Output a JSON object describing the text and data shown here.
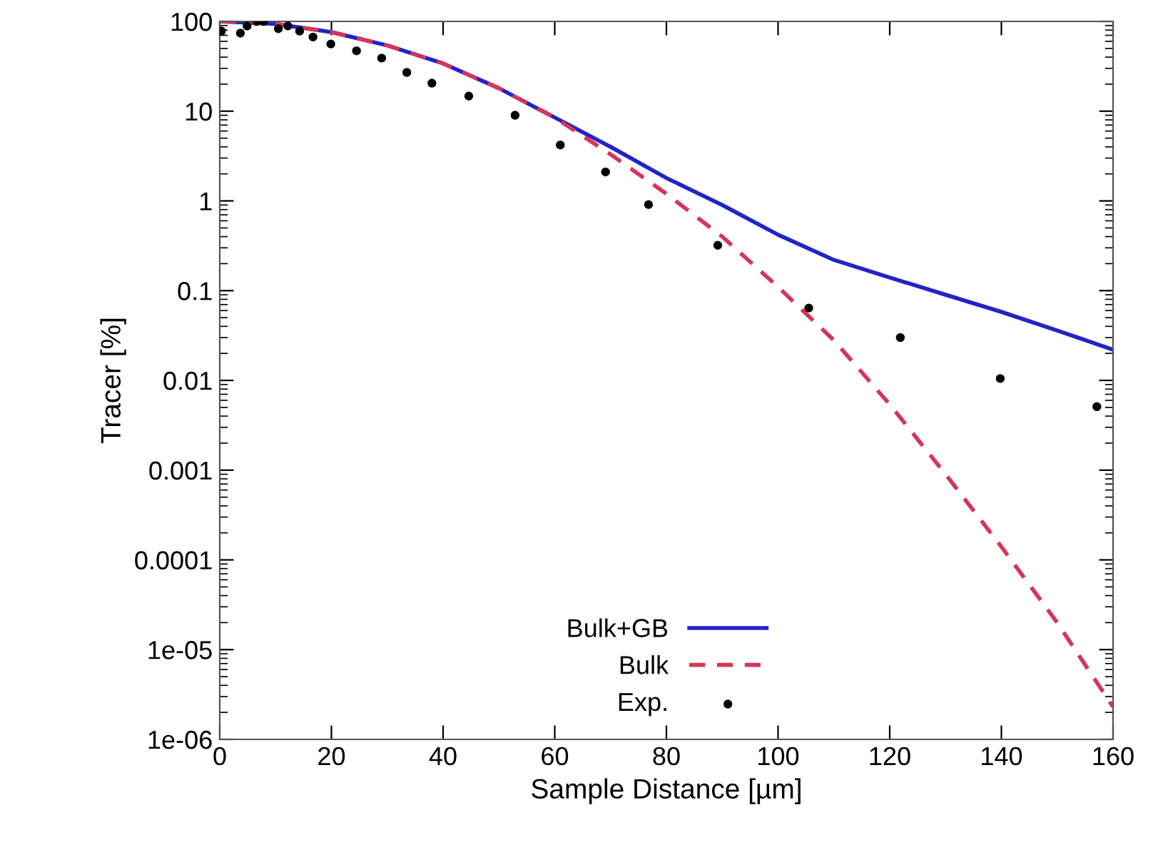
{
  "chart_data": {
    "type": "line",
    "xlabel": "Sample Distance [µm]",
    "ylabel": "Tracer [%]",
    "log": "y",
    "xlim": [
      0,
      160
    ],
    "xticks": [
      0,
      20,
      40,
      60,
      80,
      100,
      120,
      140,
      160
    ],
    "ylim": [
      1e-06,
      100
    ],
    "yticks": [
      {
        "value": 1e-06,
        "label": "1e-06"
      },
      {
        "value": 1e-05,
        "label": "1e-05"
      },
      0.0001,
      0.001,
      0.01,
      0.1,
      1,
      10,
      100
    ],
    "grid": false,
    "legend": "bottom",
    "series": [
      {
        "name": "Bulk+GB",
        "color": "#2323c8",
        "line_style": "solid",
        "marker": "none",
        "x": [
          0,
          10,
          20,
          30,
          40,
          50,
          60,
          70,
          80,
          90,
          100,
          110,
          120,
          130,
          140,
          150,
          160
        ],
        "values": [
          100,
          94,
          76,
          54,
          34,
          18,
          8.5,
          4.0,
          1.8,
          0.9,
          0.42,
          0.22,
          0.14,
          0.09,
          0.058,
          0.036,
          0.022
        ]
      },
      {
        "name": "Bulk",
        "color": "#d8345a",
        "line_style": "dashed",
        "marker": "none",
        "x": [
          0,
          10,
          20,
          30,
          40,
          50,
          60,
          70,
          80,
          90,
          100,
          110,
          120,
          130,
          140,
          150,
          160
        ],
        "values": [
          100,
          94,
          76,
          54,
          34,
          18,
          8.5,
          3.3,
          1.2,
          0.4,
          0.11,
          0.028,
          0.0054,
          0.0009,
          0.00014,
          2e-05,
          2.3e-06
        ]
      },
      {
        "name": "Exp.",
        "type": "scatter",
        "color": "#000000",
        "marker": "circle",
        "x": [
          0.3,
          3.7,
          4.9,
          6.6,
          7.9,
          10.5,
          12.2,
          14.3,
          16.7,
          19.9,
          24.5,
          29.0,
          33.5,
          38.0,
          44.6,
          52.9,
          61.0,
          69.1,
          76.8,
          89.2,
          105.5,
          121.9,
          139.8,
          157.1
        ],
        "values": [
          78,
          74,
          89,
          100,
          100,
          83,
          89,
          78,
          67,
          56,
          47,
          39,
          27,
          20.5,
          14.7,
          9.0,
          4.2,
          2.1,
          0.91,
          0.32,
          0.064,
          0.03,
          0.0105,
          0.0051
        ]
      }
    ]
  }
}
